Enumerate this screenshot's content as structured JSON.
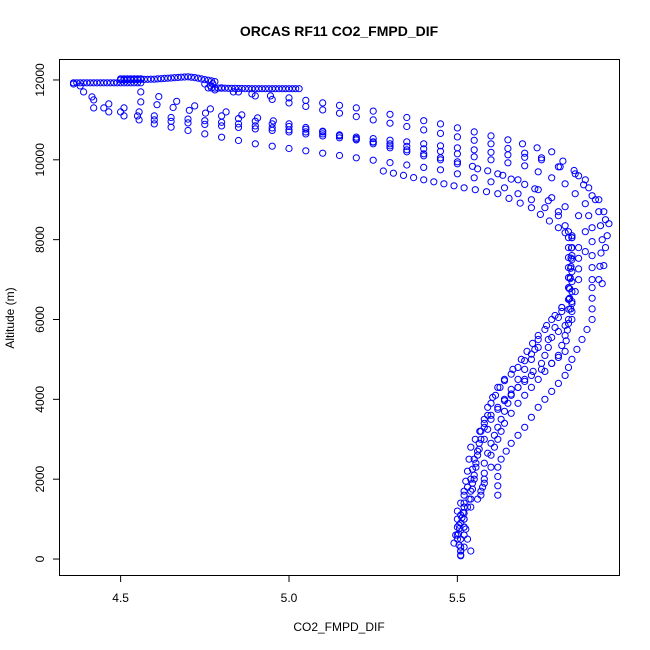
{
  "chart_data": {
    "type": "scatter",
    "title": "ORCAS RF11 CO2_FMPD_DIF",
    "xlabel": "CO2_FMPD_DIF",
    "ylabel": "Altitude (m)",
    "xlim": [
      4.32,
      5.98
    ],
    "ylim": [
      -400,
      12500
    ],
    "xticks": [
      {
        "value": 4.5,
        "label": "4.5"
      },
      {
        "value": 5.0,
        "label": "5.0"
      },
      {
        "value": 5.5,
        "label": "5.5"
      }
    ],
    "yticks": [
      {
        "value": 0,
        "label": "0"
      },
      {
        "value": 2000,
        "label": "2000"
      },
      {
        "value": 4000,
        "label": "4000"
      },
      {
        "value": 6000,
        "label": "6000"
      },
      {
        "value": 8000,
        "label": "8000"
      },
      {
        "value": 10000,
        "label": "10000"
      },
      {
        "value": 12000,
        "label": "12000"
      }
    ],
    "marker": "open-circle",
    "color": "#0000ff",
    "grid": false,
    "legend": "none",
    "series": [
      {
        "trace": [
          [
            4.36,
            11930
          ],
          [
            4.5,
            11930
          ],
          [
            4.56,
            11930
          ],
          [
            4.56,
            12030
          ],
          [
            4.5,
            12030
          ],
          [
            4.5,
            12000
          ],
          [
            4.6,
            12020
          ],
          [
            4.7,
            12080
          ],
          [
            4.72,
            12060
          ],
          [
            4.78,
            11960
          ],
          [
            4.76,
            11800
          ],
          [
            4.9,
            11780
          ],
          [
            5.03,
            11780
          ]
        ],
        "step": 0.006
      },
      {
        "trace": [
          [
            4.36,
            11900
          ],
          [
            4.42,
            11500
          ],
          [
            4.6,
            11100
          ],
          [
            4.85,
            10900
          ],
          [
            5.1,
            10650
          ],
          [
            5.35,
            10450
          ],
          [
            5.55,
            10250
          ],
          [
            5.75,
            10000
          ],
          [
            5.85,
            9650
          ],
          [
            5.9,
            9100
          ],
          [
            5.92,
            8700
          ],
          [
            5.93,
            8000
          ],
          [
            5.92,
            7000
          ]
        ],
        "step": 0.03
      },
      {
        "trace": [
          [
            4.38,
            11850
          ],
          [
            4.45,
            11300
          ],
          [
            4.6,
            11000
          ],
          [
            5.0,
            10700
          ],
          [
            5.3,
            10400
          ],
          [
            5.5,
            10150
          ],
          [
            5.7,
            9850
          ],
          [
            5.82,
            9400
          ],
          [
            5.88,
            8900
          ],
          [
            5.9,
            8300
          ],
          [
            5.9,
            7600
          ],
          [
            5.9,
            7000
          ]
        ],
        "step": 0.03
      },
      {
        "trace": [
          [
            4.42,
            11300
          ],
          [
            4.6,
            10900
          ],
          [
            4.9,
            10400
          ],
          [
            5.2,
            10050
          ],
          [
            5.45,
            9750
          ],
          [
            5.6,
            9450
          ],
          [
            5.72,
            9000
          ],
          [
            5.8,
            8600
          ],
          [
            5.84,
            8100
          ],
          [
            5.84,
            7500
          ]
        ],
        "step": 0.03
      },
      {
        "trace": [
          [
            4.56,
            11700
          ],
          [
            4.72,
            11350
          ],
          [
            5.0,
            10900
          ],
          [
            5.3,
            10350
          ],
          [
            5.5,
            9950
          ],
          [
            5.68,
            9500
          ],
          [
            5.78,
            9050
          ],
          [
            5.86,
            8600
          ],
          [
            5.88,
            8200
          ],
          [
            5.88,
            7700
          ]
        ],
        "step": 0.03
      },
      {
        "trace": [
          [
            4.75,
            11900
          ],
          [
            4.9,
            11600
          ],
          [
            5.1,
            11250
          ],
          [
            5.4,
            10750
          ],
          [
            5.6,
            10400
          ],
          [
            5.75,
            10050
          ],
          [
            5.86,
            9600
          ],
          [
            5.92,
            9000
          ],
          [
            5.95,
            8400
          ],
          [
            5.94,
            7800
          ],
          [
            5.93,
            6900
          ]
        ],
        "step": 0.03
      },
      {
        "trace": [
          [
            4.78,
            11750
          ],
          [
            5.0,
            11550
          ],
          [
            5.2,
            11300
          ],
          [
            5.45,
            10900
          ],
          [
            5.65,
            10500
          ],
          [
            5.78,
            10200
          ],
          [
            5.88,
            9500
          ],
          [
            5.91,
            9000
          ],
          [
            5.94,
            8500
          ]
        ],
        "step": 0.03
      },
      {
        "trace": [
          [
            4.56,
            11450
          ],
          [
            4.8,
            11100
          ],
          [
            5.1,
            10700
          ],
          [
            5.35,
            10200
          ],
          [
            5.5,
            9900
          ],
          [
            5.62,
            9650
          ],
          [
            5.74,
            9250
          ],
          [
            5.8,
            8700
          ],
          [
            5.83,
            8200
          ]
        ],
        "step": 0.03
      },
      {
        "trace": [
          [
            5.28,
            9720
          ],
          [
            5.4,
            9500
          ],
          [
            5.52,
            9300
          ],
          [
            5.62,
            9150
          ],
          [
            5.72,
            8800
          ],
          [
            5.8,
            8300
          ],
          [
            5.84,
            8050
          ]
        ],
        "step": 0.02
      },
      {
        "trace": [
          [
            5.84,
            8050
          ],
          [
            5.83,
            6000
          ],
          [
            5.82,
            5200
          ],
          [
            5.78,
            4900
          ],
          [
            5.72,
            4600
          ],
          [
            5.68,
            4300
          ],
          [
            5.62,
            3800
          ],
          [
            5.58,
            3400
          ],
          [
            5.54,
            2800
          ],
          [
            5.53,
            2200
          ],
          [
            5.52,
            1700
          ],
          [
            5.52,
            1400
          ],
          [
            5.51,
            1100
          ],
          [
            5.5,
            600
          ],
          [
            5.51,
            300
          ],
          [
            5.51,
            80
          ]
        ],
        "step": 0.02
      },
      {
        "trace": [
          [
            5.83,
            8050
          ],
          [
            5.83,
            6800
          ],
          [
            5.84,
            6000
          ],
          [
            5.8,
            5700
          ],
          [
            5.74,
            5300
          ],
          [
            5.68,
            4800
          ],
          [
            5.62,
            4300
          ],
          [
            5.59,
            3800
          ],
          [
            5.57,
            3200
          ],
          [
            5.56,
            2600
          ],
          [
            5.55,
            2000
          ],
          [
            5.54,
            1500
          ],
          [
            5.52,
            1150
          ],
          [
            5.52,
            800
          ],
          [
            5.51,
            500
          ],
          [
            5.51,
            200
          ]
        ],
        "step": 0.02
      },
      {
        "trace": [
          [
            5.84,
            7600
          ],
          [
            5.83,
            6500
          ],
          [
            5.79,
            6100
          ],
          [
            5.74,
            5600
          ],
          [
            5.69,
            5000
          ],
          [
            5.64,
            4500
          ],
          [
            5.6,
            3900
          ],
          [
            5.58,
            3300
          ],
          [
            5.56,
            2700
          ],
          [
            5.55,
            2100
          ],
          [
            5.54,
            1700
          ],
          [
            5.53,
            1300
          ],
          [
            5.52,
            1000
          ],
          [
            5.52,
            600
          ],
          [
            5.52,
            300
          ]
        ],
        "step": 0.02
      },
      {
        "trace": [
          [
            5.86,
            7800
          ],
          [
            5.86,
            7000
          ],
          [
            5.84,
            6400
          ],
          [
            5.78,
            6000
          ],
          [
            5.74,
            5500
          ],
          [
            5.72,
            5000
          ],
          [
            5.68,
            4500
          ],
          [
            5.64,
            4000
          ],
          [
            5.6,
            3500
          ],
          [
            5.58,
            3000
          ],
          [
            5.55,
            2500
          ],
          [
            5.54,
            2000
          ],
          [
            5.52,
            1600
          ],
          [
            5.5,
            1200
          ],
          [
            5.5,
            800
          ],
          [
            5.49,
            400
          ]
        ],
        "step": 0.02
      },
      {
        "trace": [
          [
            5.84,
            7200
          ],
          [
            5.84,
            6200
          ],
          [
            5.82,
            5600
          ],
          [
            5.8,
            5100
          ],
          [
            5.76,
            4700
          ],
          [
            5.72,
            4300
          ],
          [
            5.68,
            3900
          ],
          [
            5.64,
            3400
          ],
          [
            5.62,
            3000
          ],
          [
            5.6,
            2600
          ],
          [
            5.6,
            2300
          ],
          [
            5.58,
            2000
          ],
          [
            5.57,
            1600
          ],
          [
            5.54,
            1300
          ],
          [
            5.52,
            1000
          ],
          [
            5.53,
            500
          ],
          [
            5.54,
            200
          ]
        ],
        "step": 0.02
      },
      {
        "trace": [
          [
            5.9,
            6800
          ],
          [
            5.9,
            6000
          ],
          [
            5.87,
            5500
          ],
          [
            5.84,
            5000
          ],
          [
            5.82,
            4600
          ],
          [
            5.78,
            4200
          ],
          [
            5.74,
            3800
          ],
          [
            5.7,
            3300
          ],
          [
            5.66,
            2900
          ],
          [
            5.63,
            2500
          ],
          [
            5.62,
            2300
          ],
          [
            5.62,
            1600
          ]
        ],
        "step": 0.02
      },
      {
        "trace": [
          [
            5.81,
            6300
          ],
          [
            5.79,
            5800
          ],
          [
            5.77,
            5300
          ],
          [
            5.75,
            4900
          ],
          [
            5.7,
            4500
          ],
          [
            5.66,
            4100
          ],
          [
            5.64,
            3700
          ],
          [
            5.62,
            3300
          ],
          [
            5.6,
            2900
          ],
          [
            5.58,
            2400
          ],
          [
            5.58,
            1900
          ],
          [
            5.56,
            1500
          ]
        ],
        "step": 0.02
      },
      {
        "trace": [
          [
            5.52,
            1300
          ],
          [
            5.51,
            900
          ],
          [
            5.5,
            500
          ],
          [
            5.51,
            200
          ],
          [
            5.51,
            100
          ]
        ],
        "step": 0.01
      }
    ]
  }
}
